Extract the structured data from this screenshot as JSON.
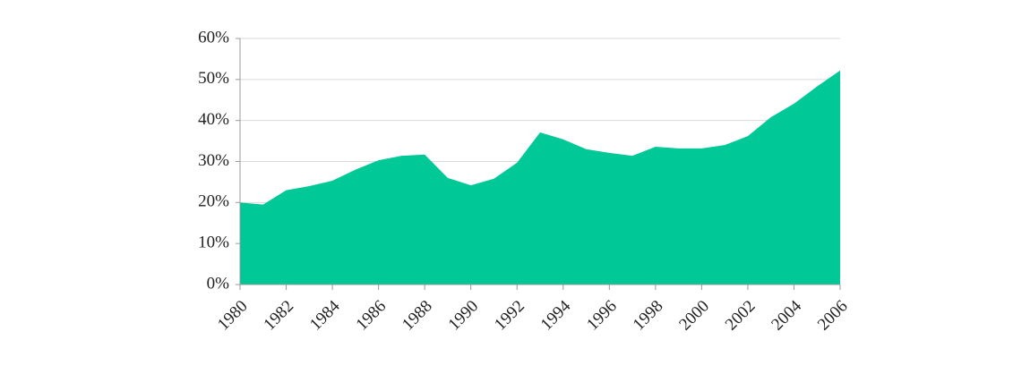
{
  "chart_data": {
    "type": "area",
    "x": [
      1980,
      1981,
      1982,
      1983,
      1984,
      1985,
      1986,
      1987,
      1988,
      1989,
      1990,
      1991,
      1992,
      1993,
      1994,
      1995,
      1996,
      1997,
      1998,
      1999,
      2000,
      2001,
      2002,
      2003,
      2004,
      2005,
      2006
    ],
    "values": [
      20,
      19.5,
      23,
      24,
      25.3,
      28,
      30.3,
      31.4,
      31.7,
      26,
      24.2,
      25.8,
      29.7,
      37.1,
      35.4,
      33,
      32.1,
      31.4,
      33.6,
      33.2,
      33.2,
      34,
      36.2,
      40.8,
      44.1,
      48.3,
      52.2
    ],
    "color": "#00c896",
    "xlim": [
      1980,
      2006
    ],
    "xticks": [
      1980,
      1982,
      1984,
      1986,
      1988,
      1990,
      1992,
      1994,
      1996,
      1998,
      2000,
      2002,
      2004,
      2006
    ],
    "ylim": [
      0,
      60
    ],
    "yticks": [
      {
        "value": 0,
        "label": "0%"
      },
      {
        "value": 10,
        "label": "10%"
      },
      {
        "value": 20,
        "label": "20%"
      },
      {
        "value": 30,
        "label": "30%"
      },
      {
        "value": 40,
        "label": "40%"
      },
      {
        "value": 50,
        "label": "50%"
      },
      {
        "value": 60,
        "label": "60%"
      }
    ],
    "grid": true
  }
}
